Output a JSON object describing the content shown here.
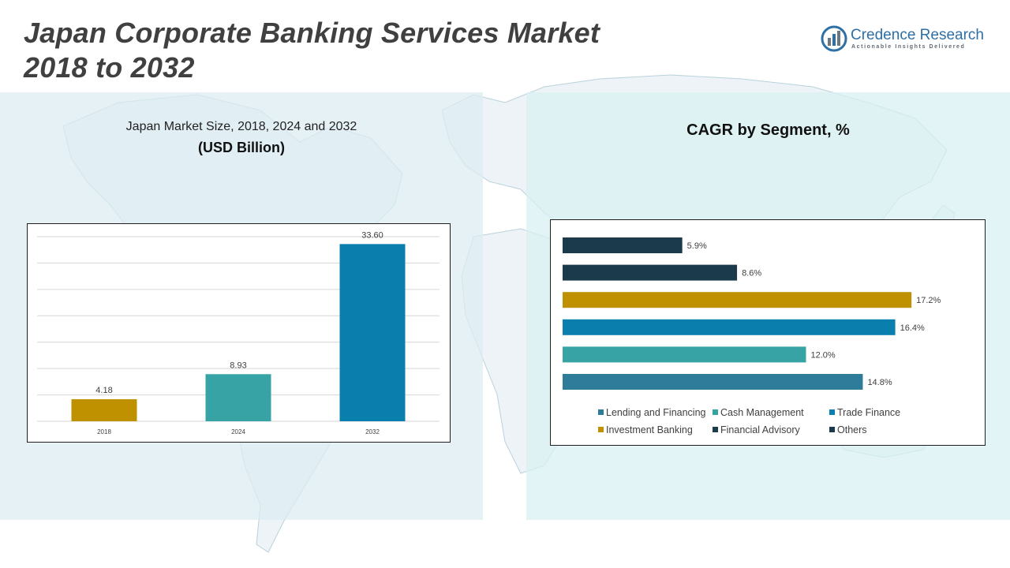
{
  "page": {
    "title_line1": "Japan Corporate Banking Services Market",
    "title_line2": "2018 to 2032"
  },
  "logo": {
    "name": "Credence Research",
    "tagline": "Actionable Insights Delivered",
    "color": "#2e6fa6"
  },
  "left_panel": {
    "subtitle": "Japan Market Size, 2018, 2024 and 2032",
    "unit": "(USD Billion)"
  },
  "right_panel": {
    "title": "CAGR by Segment, %"
  },
  "chart_data": [
    {
      "type": "bar",
      "title": "Japan Market Size, 2018, 2024 and 2032",
      "ylabel": "(USD Billion)",
      "xlabel": "",
      "categories": [
        "2018",
        "2024",
        "2032"
      ],
      "values": [
        4.18,
        8.93,
        33.6
      ],
      "value_labels": [
        "4.18",
        "8.93",
        "33.60"
      ],
      "colors": [
        "#bf9000",
        "#38a3a5",
        "#0a7fae"
      ],
      "ylim": [
        0,
        35
      ],
      "grid": true
    },
    {
      "type": "bar",
      "orientation": "horizontal",
      "title": "CAGR by Segment, %",
      "categories": [
        "Others",
        "Financial Advisory",
        "Investment Banking",
        "Trade Finance",
        "Cash Management",
        "Lending and Financing"
      ],
      "values": [
        5.9,
        8.6,
        17.2,
        16.4,
        12.0,
        14.8
      ],
      "value_labels": [
        "5.9%",
        "8.6%",
        "17.2%",
        "16.4%",
        "12.0%",
        "14.8%"
      ],
      "colors": [
        "#1b3a4b",
        "#1b3a4b",
        "#bf9000",
        "#0a7fae",
        "#38a3a5",
        "#2f7c9a"
      ],
      "xlim": [
        0,
        17.7
      ],
      "legend": {
        "position": "bottom",
        "items": [
          {
            "label": "Lending and Financing",
            "color": "#2f7c9a"
          },
          {
            "label": "Cash Management",
            "color": "#38a3a5"
          },
          {
            "label": "Trade Finance",
            "color": "#0a7fae"
          },
          {
            "label": "Investment Banking",
            "color": "#bf9000"
          },
          {
            "label": "Financial Advisory",
            "color": "#1b3a4b"
          },
          {
            "label": "Others",
            "color": "#1b3a4b"
          }
        ]
      }
    }
  ]
}
